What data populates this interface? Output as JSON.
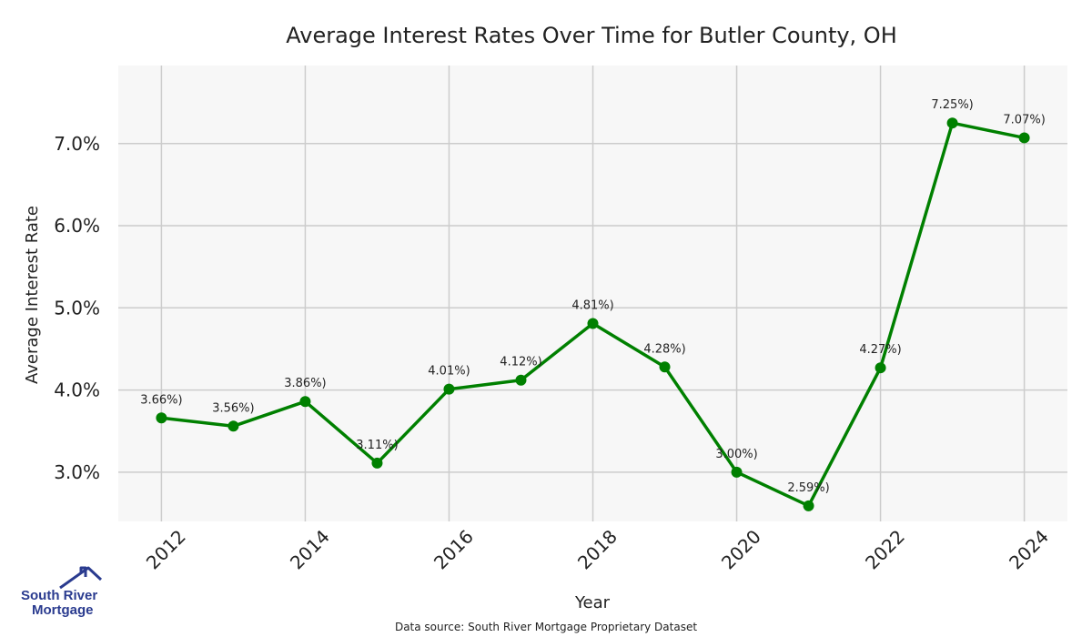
{
  "chart_data": {
    "type": "line",
    "title": "Average Interest Rates Over Time for Butler County, OH",
    "xlabel": "Year",
    "ylabel": "Average Interest Rate",
    "x": [
      2012,
      2013,
      2014,
      2015,
      2016,
      2017,
      2018,
      2019,
      2020,
      2021,
      2022,
      2023,
      2024
    ],
    "series": [
      {
        "values": [
          3.66,
          3.56,
          3.86,
          3.11,
          4.01,
          4.12,
          4.81,
          4.28,
          3.0,
          2.59,
          4.27,
          7.25,
          7.07
        ],
        "data_labels": [
          "3.66%)",
          "3.56%)",
          "3.86%)",
          "3.11%)",
          "4.01%)",
          "4.12%)",
          "4.81%)",
          "4.28%)",
          "3.00%)",
          "2.59%)",
          "4.27%)",
          "7.25%)",
          "7.07%)"
        ],
        "color": "#008000"
      }
    ],
    "x_ticks": [
      "2012",
      "2014",
      "2016",
      "2018",
      "2020",
      "2022",
      "2024"
    ],
    "y_ticks": [
      "3.0%",
      "4.0%",
      "5.0%",
      "6.0%",
      "7.0%"
    ],
    "y_tick_values": [
      3.0,
      4.0,
      5.0,
      6.0,
      7.0
    ],
    "xlim": [
      2011.4,
      2024.6
    ],
    "ylim": [
      2.4,
      7.95
    ],
    "grid": true,
    "background_color": "#f7f7f7",
    "grid_color": "#cccccc"
  },
  "footer": {
    "source": "Data source: South River Mortgage Proprietary Dataset"
  },
  "logo": {
    "line1": "South River",
    "line2": "Mortgage",
    "color": "#2a3b8f"
  }
}
